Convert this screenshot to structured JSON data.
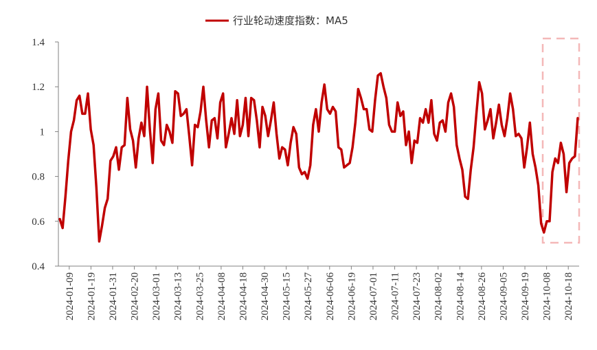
{
  "chart_data": {
    "type": "line",
    "legend": {
      "position": "top-center"
    },
    "grid": false,
    "ylim": [
      0.4,
      1.4
    ],
    "y_ticks": [
      "0.4",
      "0.6",
      "0.8",
      "1",
      "1.2",
      "1.4"
    ],
    "x_tick_labels": [
      "2024-01-09",
      "2024-01-19",
      "2024-01-31",
      "2024-02-20",
      "2024-03-01",
      "2024-03-13",
      "2024-03-25",
      "2024-04-08",
      "2024-04-18",
      "2024-04-30",
      "2024-05-15",
      "2024-05-27",
      "2024-06-06",
      "2024-06-19",
      "2024-07-01",
      "2024-07-11",
      "2024-07-23",
      "2024-08-02",
      "2024-08-14",
      "2024-08-26",
      "2024-09-05",
      "2024-09-19",
      "2024-10-08",
      "2024-10-18"
    ],
    "highlight": {
      "from": "2024-10-08",
      "to": "2024-10-25",
      "style": "dashed-box",
      "color": "#f4b8b8"
    },
    "series": [
      {
        "name": "行业轮动速度指数：MA5",
        "color": "#c00000",
        "values": [
          0.61,
          0.57,
          0.71,
          0.87,
          1.0,
          1.05,
          1.14,
          1.16,
          1.08,
          1.08,
          1.17,
          1.01,
          0.94,
          0.75,
          0.51,
          0.58,
          0.66,
          0.7,
          0.87,
          0.89,
          0.93,
          0.83,
          0.93,
          0.94,
          1.15,
          1.01,
          0.96,
          0.84,
          0.97,
          1.04,
          0.98,
          1.2,
          1.01,
          0.86,
          1.1,
          1.17,
          0.96,
          0.94,
          1.03,
          1.0,
          0.95,
          1.18,
          1.17,
          1.07,
          1.08,
          1.1,
          0.98,
          0.85,
          1.03,
          1.02,
          1.09,
          1.2,
          1.05,
          0.93,
          1.05,
          1.06,
          0.97,
          1.13,
          1.17,
          0.93,
          0.99,
          1.06,
          0.99,
          1.14,
          0.98,
          1.03,
          1.15,
          0.98,
          1.15,
          1.14,
          1.05,
          0.93,
          1.11,
          1.07,
          0.98,
          1.05,
          1.13,
          0.99,
          0.88,
          0.93,
          0.92,
          0.85,
          0.95,
          1.02,
          0.99,
          0.84,
          0.81,
          0.82,
          0.79,
          0.85,
          1.03,
          1.1,
          1.0,
          1.13,
          1.21,
          1.1,
          1.08,
          1.11,
          1.09,
          0.93,
          0.92,
          0.84,
          0.85,
          0.86,
          0.93,
          1.04,
          1.19,
          1.15,
          1.1,
          1.1,
          1.01,
          1.0,
          1.14,
          1.25,
          1.26,
          1.2,
          1.15,
          1.03,
          1.0,
          1.0,
          1.13,
          1.07,
          1.09,
          0.94,
          1.0,
          0.86,
          0.96,
          0.95,
          1.06,
          1.04,
          1.1,
          1.04,
          1.14,
          0.99,
          0.96,
          1.04,
          1.05,
          1.0,
          1.13,
          1.17,
          1.11,
          0.94,
          0.88,
          0.83,
          0.71,
          0.7,
          0.83,
          0.93,
          1.08,
          1.22,
          1.17,
          1.01,
          1.05,
          1.1,
          0.97,
          1.04,
          1.12,
          1.03,
          0.98,
          1.06,
          1.17,
          1.1,
          0.98,
          0.99,
          0.97,
          0.84,
          0.93,
          1.04,
          0.9,
          0.84,
          0.76,
          0.59,
          0.55,
          0.6,
          0.6,
          0.82,
          0.88,
          0.86,
          0.95,
          0.9,
          0.73,
          0.86,
          0.88,
          0.89,
          1.06
        ]
      }
    ]
  }
}
